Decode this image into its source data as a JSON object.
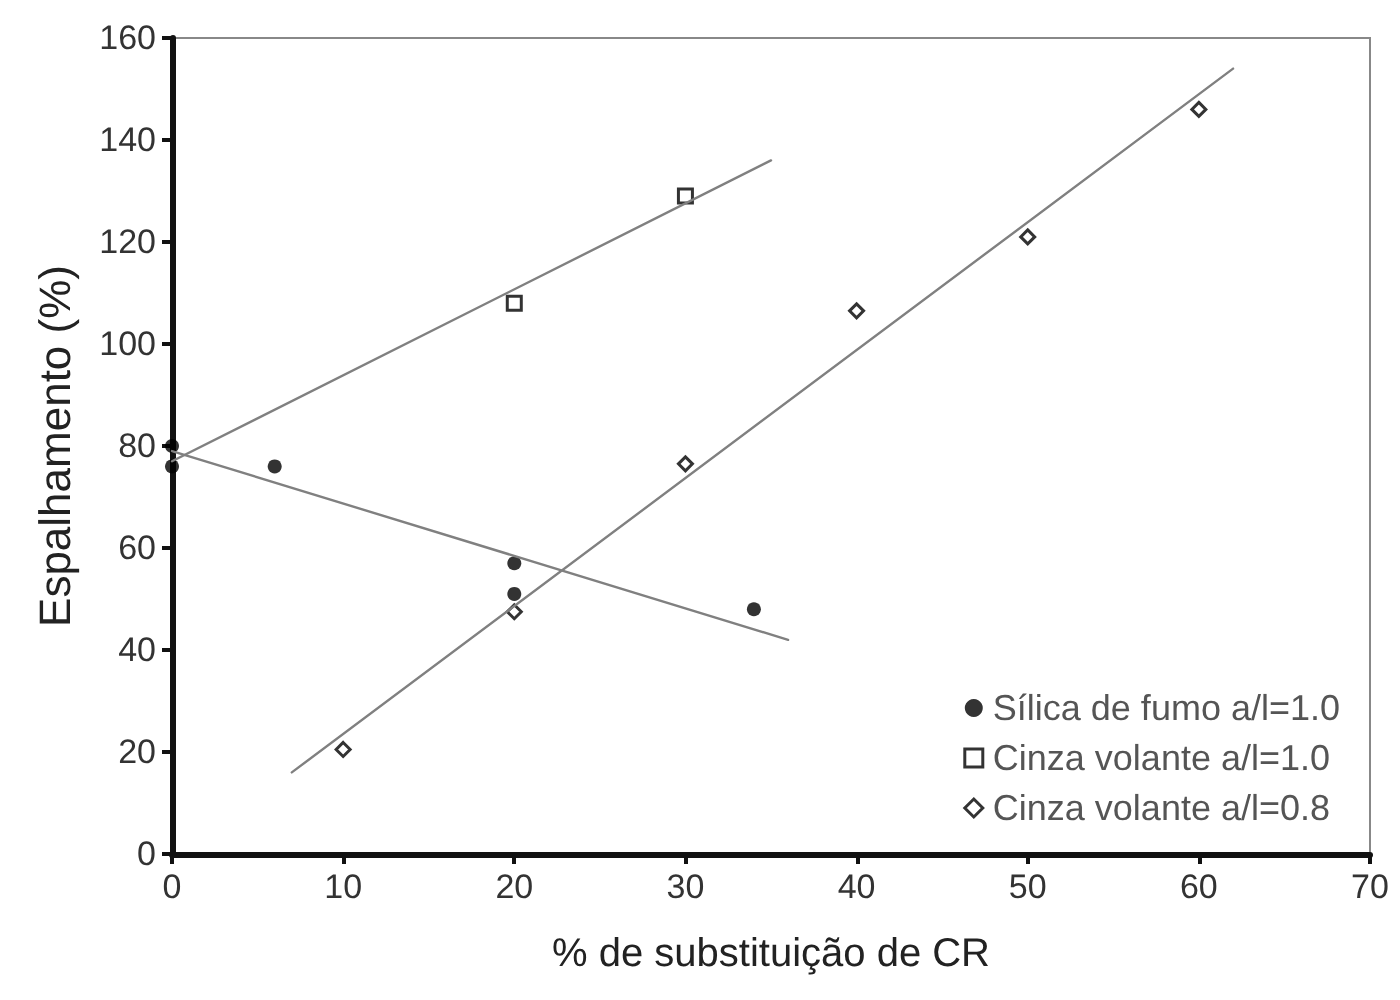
{
  "chart_data": {
    "type": "scatter",
    "xlabel": "% de substituição de CR",
    "ylabel": "Espalhamento (%)",
    "xlim": [
      0,
      70
    ],
    "xticks": [
      0,
      10,
      20,
      30,
      40,
      50,
      60,
      70
    ],
    "ylim": [
      0,
      160
    ],
    "yticks": [
      0,
      20,
      40,
      60,
      80,
      100,
      120,
      140,
      160
    ],
    "grid": false,
    "legend": "bottom right",
    "series": [
      {
        "name": "Sílica de fumo a/l=1.0",
        "color": "#000000",
        "marker": "circle",
        "x": [
          0,
          0,
          6,
          20,
          20,
          34
        ],
        "values": [
          80,
          76,
          76,
          57,
          51,
          48
        ]
      },
      {
        "name": "Cinza volante a/l=1.0",
        "color": "#000000",
        "marker": "square",
        "x": [
          20,
          30
        ],
        "values": [
          108,
          129
        ]
      },
      {
        "name": "Cinza volante a/l=0.8",
        "color": "#000000",
        "marker": "diamond",
        "x": [
          10,
          20,
          30,
          40,
          50,
          60
        ],
        "values": [
          20.5,
          47.5,
          76.5,
          106.5,
          121,
          146
        ]
      },
      {
        "type": "line",
        "color": "#808080",
        "marker": "none",
        "line_style": "solid",
        "x": [
          0,
          36
        ],
        "values": [
          79,
          42
        ]
      },
      {
        "type": "line",
        "color": "#808080",
        "marker": "none",
        "line_style": "solid",
        "x": [
          0,
          35
        ],
        "values": [
          77,
          136
        ]
      },
      {
        "type": "line",
        "color": "#808080",
        "marker": "none",
        "line_style": "solid",
        "x": [
          7,
          62
        ],
        "values": [
          16,
          154
        ]
      }
    ]
  }
}
